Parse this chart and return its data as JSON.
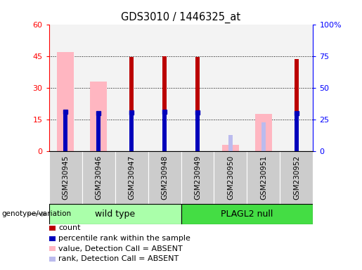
{
  "title": "GDS3010 / 1446325_at",
  "samples": [
    "GSM230945",
    "GSM230946",
    "GSM230947",
    "GSM230948",
    "GSM230949",
    "GSM230950",
    "GSM230951",
    "GSM230952"
  ],
  "groups": [
    "wild type",
    "wild type",
    "wild type",
    "wild type",
    "PLAGL2 null",
    "PLAGL2 null",
    "PLAGL2 null",
    "PLAGL2 null"
  ],
  "count_values": [
    null,
    null,
    44.5,
    45.0,
    44.5,
    null,
    null,
    43.5
  ],
  "rank_values": [
    31.0,
    30.0,
    30.5,
    31.0,
    30.5,
    null,
    null,
    30.0
  ],
  "absent_value_values": [
    47.0,
    33.0,
    null,
    null,
    null,
    3.0,
    17.5,
    null
  ],
  "absent_rank_values": [
    null,
    null,
    null,
    null,
    null,
    12.5,
    22.5,
    null
  ],
  "yticks_left": [
    0,
    15,
    30,
    45,
    60
  ],
  "ytick_labels_left": [
    "0",
    "15",
    "30",
    "45",
    "60"
  ],
  "yticks_right_val": [
    0,
    25,
    50,
    75,
    100
  ],
  "ytick_labels_right": [
    "0",
    "25",
    "50",
    "75",
    "100%"
  ],
  "count_color": "#BB0000",
  "rank_color": "#0000BB",
  "absent_value_color": "#FFB6C1",
  "absent_rank_color": "#BBBBEE",
  "wildtype_color": "#AAFFAA",
  "null_color": "#44DD44",
  "bg_col_color": "#DDDDDD"
}
